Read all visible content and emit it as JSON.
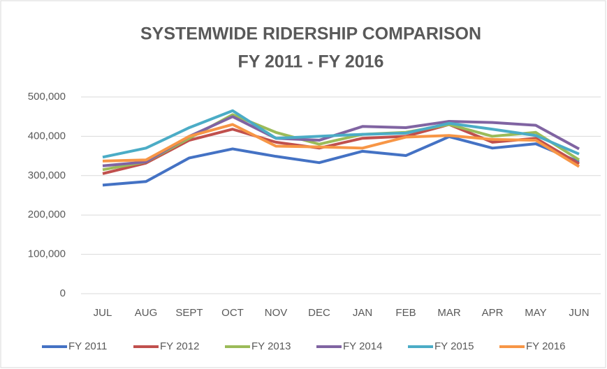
{
  "chart_data": {
    "type": "line",
    "title": "SYSTEMWIDE RIDERSHIP COMPARISON",
    "subtitle": "FY 2011 - FY 2016",
    "categories": [
      "JUL",
      "AUG",
      "SEPT",
      "OCT",
      "NOV",
      "DEC",
      "JAN",
      "FEB",
      "MAR",
      "APR",
      "MAY",
      "JUN"
    ],
    "series": [
      {
        "name": "FY 2011",
        "color": "#4472c4",
        "values": [
          276000,
          285000,
          345000,
          368000,
          349000,
          333000,
          362000,
          351000,
          399000,
          370000,
          381000,
          335000
        ]
      },
      {
        "name": "FY 2012",
        "color": "#c0504d",
        "values": [
          305000,
          332000,
          390000,
          418000,
          385000,
          370000,
          395000,
          400000,
          430000,
          385000,
          395000,
          330000
        ]
      },
      {
        "name": "FY 2013",
        "color": "#9bbb59",
        "values": [
          315000,
          335000,
          395000,
          455000,
          410000,
          380000,
          405000,
          410000,
          430000,
          400000,
          410000,
          340000
        ]
      },
      {
        "name": "FY 2014",
        "color": "#8064a2",
        "values": [
          325000,
          335000,
          400000,
          450000,
          395000,
          390000,
          425000,
          422000,
          438000,
          435000,
          428000,
          368000
        ]
      },
      {
        "name": "FY 2015",
        "color": "#4bacc6",
        "values": [
          347000,
          370000,
          422000,
          465000,
          395000,
          400000,
          405000,
          408000,
          433000,
          418000,
          402000,
          355000
        ]
      },
      {
        "name": "FY 2016",
        "color": "#f79646",
        "values": [
          337000,
          340000,
          400000,
          430000,
          375000,
          373000,
          370000,
          398000,
          402000,
          392000,
          390000,
          323000
        ]
      }
    ],
    "ylim": [
      0,
      500000
    ],
    "yticks": [
      0,
      {
        "value": 100000,
        "label": "100,000"
      },
      {
        "value": 200000,
        "label": "200,000"
      },
      {
        "value": 300000,
        "label": "300,000"
      },
      {
        "value": 400000,
        "label": "400,000"
      },
      {
        "value": 500000,
        "label": "500,000"
      }
    ],
    "grid": true,
    "legend": "bottom"
  }
}
